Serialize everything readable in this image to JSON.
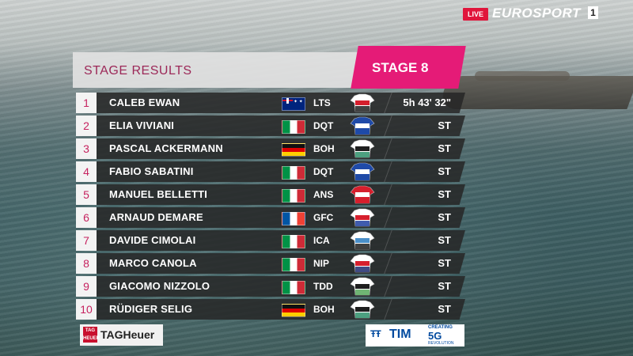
{
  "broadcast": {
    "live_label": "LIVE",
    "channel": "EUROSPORT",
    "channel_number": "1"
  },
  "header": {
    "title": "STAGE RESULTS",
    "stage": "STAGE 8"
  },
  "results": [
    {
      "pos": "1",
      "name": "CALEB EWAN",
      "flag": "au",
      "team": "LTS",
      "time": "5h 43' 32\"",
      "jersey_colors": [
        "#ffffff",
        "#d61f2d",
        "#222222"
      ]
    },
    {
      "pos": "2",
      "name": "ELIA VIVIANI",
      "flag": "it",
      "team": "DQT",
      "time": "ST",
      "jersey_colors": [
        "#1f4aa8",
        "#ffffff",
        "#1f4aa8"
      ]
    },
    {
      "pos": "3",
      "name": "PASCAL ACKERMANN",
      "flag": "de",
      "team": "BOH",
      "time": "ST",
      "jersey_colors": [
        "#ffffff",
        "#1e1e1e",
        "#2e8f6a"
      ]
    },
    {
      "pos": "4",
      "name": "FABIO SABATINI",
      "flag": "it",
      "team": "DQT",
      "time": "ST",
      "jersey_colors": [
        "#1f4aa8",
        "#ffffff",
        "#1f4aa8"
      ]
    },
    {
      "pos": "5",
      "name": "MANUEL BELLETTI",
      "flag": "it",
      "team": "ANS",
      "time": "ST",
      "jersey_colors": [
        "#d61f2d",
        "#ffffff",
        "#d61f2d"
      ]
    },
    {
      "pos": "6",
      "name": "ARNAUD DEMARE",
      "flag": "fr",
      "team": "GFC",
      "time": "ST",
      "jersey_colors": [
        "#ffffff",
        "#d61f2d",
        "#1f3fa0"
      ]
    },
    {
      "pos": "7",
      "name": "DAVIDE CIMOLAI",
      "flag": "it",
      "team": "ICA",
      "time": "ST",
      "jersey_colors": [
        "#ffffff",
        "#4a8fc9",
        "#1e1e1e"
      ]
    },
    {
      "pos": "8",
      "name": "MARCO CANOLA",
      "flag": "it",
      "team": "NIP",
      "time": "ST",
      "jersey_colors": [
        "#ffffff",
        "#d61f2d",
        "#1f2c6e"
      ]
    },
    {
      "pos": "9",
      "name": "GIACOMO NIZZOLO",
      "flag": "it",
      "team": "TDD",
      "time": "ST",
      "jersey_colors": [
        "#ffffff",
        "#1e1e1e",
        "#57a85c"
      ]
    },
    {
      "pos": "10",
      "name": "RÜDIGER SELIG",
      "flag": "de",
      "team": "BOH",
      "time": "ST",
      "jersey_colors": [
        "#ffffff",
        "#1e1e1e",
        "#2e8f6a"
      ]
    }
  ],
  "sponsors": {
    "tag_logo": "TAG HEUER",
    "tag_text": "TAGHeuer",
    "tim_text": "TIM",
    "tim_creating": "CREATING",
    "tim_5g": "5G",
    "tim_revolution": "REVOLUTION"
  }
}
